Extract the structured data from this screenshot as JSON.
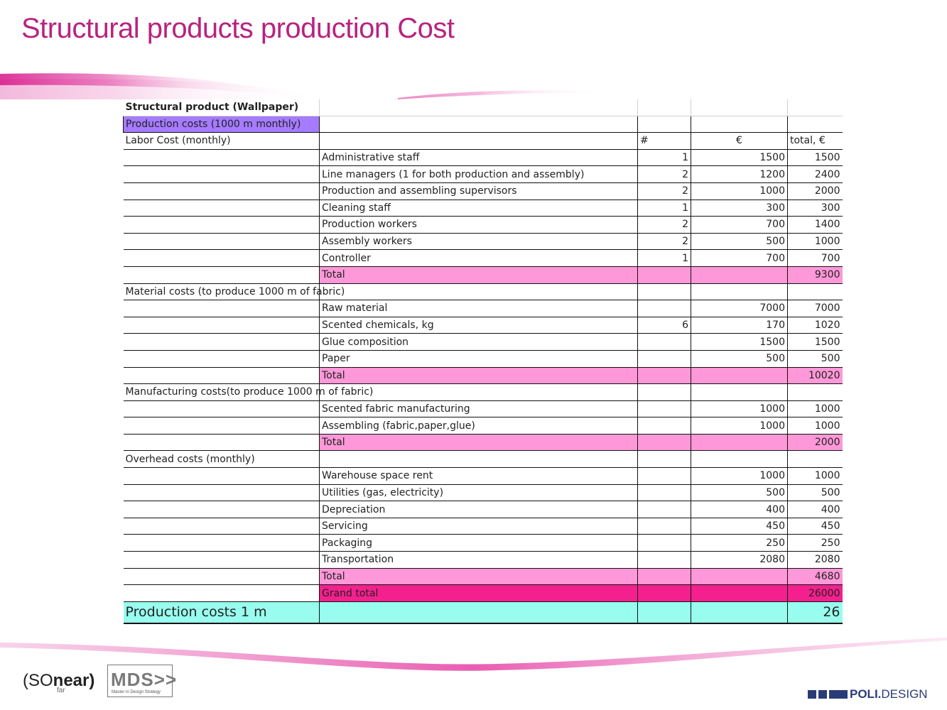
{
  "slide": {
    "title": "Structural products production Cost"
  },
  "table": {
    "rows": [
      {
        "kind": "top",
        "label": "Structural product (Wallpaper)",
        "item": "",
        "qty": "",
        "unit": "",
        "total": ""
      },
      {
        "kind": "purple",
        "label": "Production costs (1000 m monthly)",
        "item": "",
        "qty": "",
        "unit": "",
        "total": ""
      },
      {
        "kind": "section",
        "label": "Labor Cost (monthly)",
        "item": "",
        "qty": "#",
        "unit": "€",
        "total": "total, €"
      },
      {
        "kind": "item",
        "label": "",
        "item": "Administrative staff",
        "qty": "1",
        "unit": "1500",
        "total": "1500"
      },
      {
        "kind": "item",
        "label": "",
        "item": "Line managers (1 for both production and assembly)",
        "qty": "2",
        "unit": "1200",
        "total": "2400"
      },
      {
        "kind": "item",
        "label": "",
        "item": "Production and assembling supervisors",
        "qty": "2",
        "unit": "1000",
        "total": "2000"
      },
      {
        "kind": "item",
        "label": "",
        "item": "Cleaning staff",
        "qty": "1",
        "unit": "300",
        "total": "300"
      },
      {
        "kind": "item",
        "label": "",
        "item": "Production workers",
        "qty": "2",
        "unit": "700",
        "total": "1400"
      },
      {
        "kind": "item",
        "label": "",
        "item": "Assembly workers",
        "qty": "2",
        "unit": "500",
        "total": "1000"
      },
      {
        "kind": "item",
        "label": "",
        "item": "Controller",
        "qty": "1",
        "unit": "700",
        "total": "700"
      },
      {
        "kind": "total",
        "label": "",
        "item": "Total",
        "qty": "",
        "unit": "",
        "total": "9300"
      },
      {
        "kind": "section",
        "label": "Material costs (to produce 1000 m of fabric)",
        "item": "",
        "qty": "",
        "unit": "",
        "total": ""
      },
      {
        "kind": "item",
        "label": "",
        "item": "Raw material",
        "qty": "",
        "unit": "7000",
        "total": "7000"
      },
      {
        "kind": "item",
        "label": "",
        "item": "Scented chemicals, kg",
        "qty": "6",
        "unit": "170",
        "total": "1020"
      },
      {
        "kind": "item",
        "label": "",
        "item": "Glue composition",
        "qty": "",
        "unit": "1500",
        "total": "1500"
      },
      {
        "kind": "item",
        "label": "",
        "item": "Paper",
        "qty": "",
        "unit": "500",
        "total": "500"
      },
      {
        "kind": "total",
        "label": "",
        "item": "Total",
        "qty": "",
        "unit": "",
        "total": "10020"
      },
      {
        "kind": "section",
        "label": "Manufacturing costs(to produce 1000 m of fabric)",
        "item": "",
        "qty": "",
        "unit": "",
        "total": ""
      },
      {
        "kind": "item",
        "label": "",
        "item": "Scented fabric manufacturing",
        "qty": "",
        "unit": "1000",
        "total": "1000"
      },
      {
        "kind": "item",
        "label": "",
        "item": "Assembling (fabric,paper,glue)",
        "qty": "",
        "unit": "1000",
        "total": "1000"
      },
      {
        "kind": "total",
        "label": "",
        "item": "Total",
        "qty": "",
        "unit": "",
        "total": "2000"
      },
      {
        "kind": "section",
        "label": "Overhead costs (monthly)",
        "item": "",
        "qty": "",
        "unit": "",
        "total": ""
      },
      {
        "kind": "item",
        "label": "",
        "item": "Warehouse space rent",
        "qty": "",
        "unit": "1000",
        "total": "1000"
      },
      {
        "kind": "item",
        "label": "",
        "item": "Utilities (gas, electricity)",
        "qty": "",
        "unit": "500",
        "total": "500"
      },
      {
        "kind": "item",
        "label": "",
        "item": "Depreciation",
        "qty": "",
        "unit": "400",
        "total": "400"
      },
      {
        "kind": "item",
        "label": "",
        "item": "Servicing",
        "qty": "",
        "unit": "450",
        "total": "450"
      },
      {
        "kind": "item",
        "label": "",
        "item": "Packaging",
        "qty": "",
        "unit": "250",
        "total": "250"
      },
      {
        "kind": "item",
        "label": "",
        "item": "Transportation",
        "qty": "",
        "unit": "2080",
        "total": "2080"
      },
      {
        "kind": "total",
        "label": "",
        "item": "Total",
        "qty": "",
        "unit": "",
        "total": "4680"
      },
      {
        "kind": "grand",
        "label": "",
        "item": "Grand total",
        "qty": "",
        "unit": "",
        "total": "26000"
      },
      {
        "kind": "final",
        "label": "Production costs 1 m",
        "item": "",
        "qty": "",
        "unit": "",
        "total": "26"
      }
    ]
  },
  "footer": {
    "logo_snear_main": "(SO",
    "logo_snear_near": "near)",
    "logo_snear_far": "far",
    "logo_mds_big": "MDS>>",
    "logo_mds_small": "Master in Design Strategy",
    "logo_poli_bold": "POLI.",
    "logo_poli_rest": "DESIGN"
  },
  "colors": {
    "title": "#b8237f",
    "swoosh": "#e23ea0",
    "purple_cell": "#a57bff",
    "total_row": "#fe98d8",
    "grand_total_row": "#f3208d",
    "final_row": "#98fdee"
  }
}
